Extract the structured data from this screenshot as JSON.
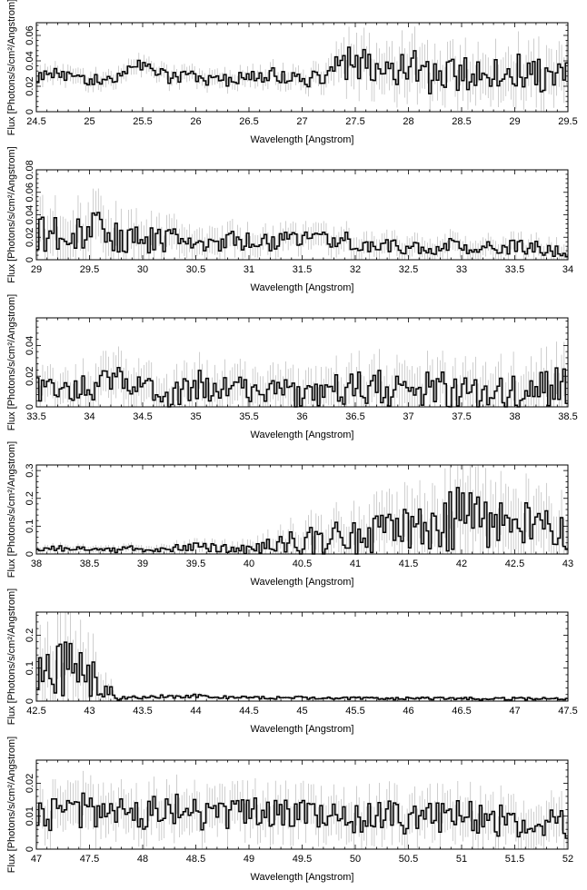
{
  "figure": {
    "ylabel": "Flux [Photons/s/cm²/Angstrom]",
    "xlabel": "Wavelength [Angstrom]"
  },
  "chart_data": [
    {
      "type": "step",
      "xlabel": "Wavelength [Angstrom]",
      "ylabel": "Flux [Photons/s/cm²/Angstrom]",
      "xlim": [
        24.5,
        29.5
      ],
      "ylim": [
        0,
        0.07
      ],
      "xticks": [
        "24.5",
        "25",
        "25.5",
        "26",
        "26.5",
        "27",
        "27.5",
        "28",
        "28.5",
        "29",
        "29.5"
      ],
      "yticks": [
        "0",
        "0.02",
        "0.04",
        "0.06"
      ],
      "x": [
        24.5,
        24.75,
        25.0,
        25.25,
        25.5,
        25.75,
        26.0,
        26.25,
        26.5,
        26.75,
        27.0,
        27.25,
        27.5,
        27.75,
        28.0,
        28.25,
        28.5,
        28.75,
        29.0,
        29.25,
        29.5
      ],
      "y": [
        0.026,
        0.03,
        0.024,
        0.027,
        0.037,
        0.026,
        0.027,
        0.024,
        0.028,
        0.029,
        0.024,
        0.03,
        0.04,
        0.03,
        0.034,
        0.025,
        0.03,
        0.027,
        0.034,
        0.03,
        0.034
      ],
      "err": [
        0.006,
        0.006,
        0.006,
        0.006,
        0.006,
        0.006,
        0.006,
        0.006,
        0.006,
        0.007,
        0.007,
        0.01,
        0.018,
        0.016,
        0.02,
        0.016,
        0.016,
        0.016,
        0.018,
        0.018,
        0.018
      ]
    },
    {
      "type": "step",
      "xlabel": "Wavelength [Angstrom]",
      "ylabel": "Flux [Photons/s/cm²/Angstrom]",
      "xlim": [
        29,
        34
      ],
      "ylim": [
        0,
        0.08
      ],
      "xticks": [
        "29",
        "29.5",
        "30",
        "30.5",
        "31",
        "31.5",
        "32",
        "32.5",
        "33",
        "33.5",
        "34"
      ],
      "yticks": [
        "0",
        "0.02",
        "0.04",
        "0.06",
        "0.08"
      ],
      "x": [
        29.0,
        29.25,
        29.5,
        29.75,
        30.0,
        30.25,
        30.5,
        30.75,
        31.0,
        31.25,
        31.5,
        31.75,
        32.0,
        32.25,
        32.5,
        32.75,
        33.0,
        33.25,
        33.5,
        33.75,
        34.0
      ],
      "y": [
        0.025,
        0.02,
        0.03,
        0.02,
        0.018,
        0.017,
        0.016,
        0.017,
        0.017,
        0.016,
        0.016,
        0.018,
        0.016,
        0.014,
        0.012,
        0.012,
        0.012,
        0.01,
        0.012,
        0.01,
        0.009
      ],
      "err": [
        0.02,
        0.02,
        0.022,
        0.02,
        0.016,
        0.014,
        0.012,
        0.012,
        0.01,
        0.01,
        0.01,
        0.01,
        0.01,
        0.009,
        0.009,
        0.009,
        0.008,
        0.008,
        0.008,
        0.008,
        0.008
      ]
    },
    {
      "type": "step",
      "xlabel": "Wavelength [Angstrom]",
      "ylabel": "Flux [Photons/s/cm²/Angstrom]",
      "xlim": [
        33.5,
        38.5
      ],
      "ylim": [
        0,
        0.058
      ],
      "xticks": [
        "33.5",
        "34",
        "34.5",
        "35",
        "35.5",
        "36",
        "36.5",
        "37",
        "37.5",
        "38",
        "38.5"
      ],
      "yticks": [
        "0",
        "0.02",
        "0.04"
      ],
      "x": [
        33.5,
        33.75,
        34.0,
        34.25,
        34.5,
        34.75,
        35.0,
        35.25,
        35.5,
        35.75,
        36.0,
        36.25,
        36.5,
        36.75,
        37.0,
        37.25,
        37.5,
        37.75,
        38.0,
        38.25,
        38.5
      ],
      "y": [
        0.012,
        0.01,
        0.012,
        0.018,
        0.012,
        0.01,
        0.014,
        0.012,
        0.01,
        0.008,
        0.008,
        0.01,
        0.012,
        0.012,
        0.01,
        0.012,
        0.01,
        0.01,
        0.012,
        0.012,
        0.014
      ],
      "err": [
        0.01,
        0.01,
        0.012,
        0.014,
        0.012,
        0.012,
        0.012,
        0.012,
        0.012,
        0.012,
        0.012,
        0.012,
        0.014,
        0.014,
        0.014,
        0.014,
        0.014,
        0.016,
        0.016,
        0.016,
        0.018
      ]
    },
    {
      "type": "step",
      "xlabel": "Wavelength [Angstrom]",
      "ylabel": "Flux [Photons/s/cm²/Angstrom]",
      "xlim": [
        38,
        43
      ],
      "ylim": [
        0,
        0.32
      ],
      "xticks": [
        "38",
        "38.5",
        "39",
        "39.5",
        "40",
        "40.5",
        "41",
        "41.5",
        "42",
        "42.5",
        "43"
      ],
      "yticks": [
        "0",
        "0.1",
        "0.2",
        "0.3"
      ],
      "x": [
        38.0,
        38.25,
        38.5,
        38.75,
        39.0,
        39.25,
        39.5,
        39.75,
        40.0,
        40.25,
        40.5,
        40.75,
        41.0,
        41.25,
        41.5,
        41.75,
        42.0,
        42.25,
        42.5,
        42.75,
        43.0
      ],
      "y": [
        0.015,
        0.02,
        0.018,
        0.015,
        0.02,
        0.022,
        0.025,
        0.02,
        0.02,
        0.03,
        0.04,
        0.05,
        0.06,
        0.075,
        0.08,
        0.085,
        0.14,
        0.09,
        0.12,
        0.1,
        0.1
      ],
      "err": [
        0.012,
        0.012,
        0.012,
        0.012,
        0.014,
        0.016,
        0.018,
        0.02,
        0.025,
        0.04,
        0.06,
        0.07,
        0.08,
        0.09,
        0.1,
        0.11,
        0.15,
        0.12,
        0.11,
        0.1,
        0.1
      ]
    },
    {
      "type": "step",
      "xlabel": "Wavelength [Angstrom]",
      "ylabel": "Flux [Photons/s/cm²/Angstrom]",
      "xlim": [
        42.5,
        47.5
      ],
      "ylim": [
        0,
        0.27
      ],
      "xticks": [
        "42.5",
        "43",
        "43.5",
        "44",
        "44.5",
        "45",
        "45.5",
        "46",
        "46.5",
        "47",
        "47.5"
      ],
      "yticks": [
        "0",
        "0.1",
        "0.2"
      ],
      "x": [
        42.5,
        42.75,
        43.0,
        43.25,
        43.5,
        43.75,
        44.0,
        44.25,
        44.5,
        44.75,
        45.0,
        45.25,
        45.5,
        45.75,
        46.0,
        46.25,
        46.5,
        46.75,
        47.0,
        47.25,
        47.5
      ],
      "y": [
        0.11,
        0.1,
        0.1,
        0.008,
        0.012,
        0.014,
        0.016,
        0.012,
        0.01,
        0.01,
        0.01,
        0.009,
        0.009,
        0.008,
        0.008,
        0.008,
        0.007,
        0.007,
        0.007,
        0.007,
        0.007
      ],
      "err": [
        0.1,
        0.1,
        0.1,
        0.006,
        0.006,
        0.006,
        0.006,
        0.005,
        0.005,
        0.005,
        0.005,
        0.005,
        0.005,
        0.005,
        0.005,
        0.005,
        0.005,
        0.005,
        0.005,
        0.005,
        0.005
      ]
    },
    {
      "type": "step",
      "xlabel": "Wavelength [Angstrom]",
      "ylabel": "Flux [Photons/s/cm²/Angstrom]",
      "xlim": [
        47,
        52
      ],
      "ylim": [
        0,
        0.027
      ],
      "xticks": [
        "47",
        "47.5",
        "48",
        "48.5",
        "49",
        "49.5",
        "50",
        "50.5",
        "51",
        "51.5",
        "52"
      ],
      "yticks": [
        "0",
        "0.01",
        "0.02"
      ],
      "x": [
        47.0,
        47.25,
        47.5,
        47.75,
        48.0,
        48.25,
        48.5,
        48.75,
        49.0,
        49.25,
        49.5,
        49.75,
        50.0,
        50.25,
        50.5,
        50.75,
        51.0,
        51.25,
        51.5,
        51.75,
        52.0
      ],
      "y": [
        0.01,
        0.011,
        0.012,
        0.01,
        0.011,
        0.012,
        0.011,
        0.01,
        0.012,
        0.011,
        0.01,
        0.009,
        0.009,
        0.01,
        0.009,
        0.01,
        0.01,
        0.009,
        0.008,
        0.008,
        0.008
      ],
      "err": [
        0.006,
        0.006,
        0.007,
        0.006,
        0.006,
        0.006,
        0.006,
        0.006,
        0.006,
        0.006,
        0.006,
        0.006,
        0.006,
        0.006,
        0.006,
        0.006,
        0.006,
        0.006,
        0.006,
        0.006,
        0.006
      ]
    }
  ]
}
